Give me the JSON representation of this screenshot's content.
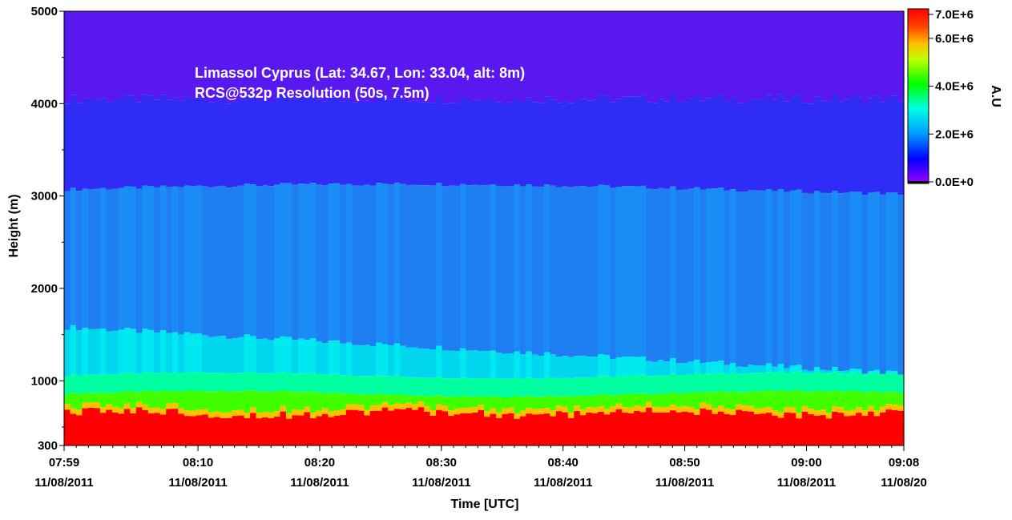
{
  "chart_data": {
    "type": "heatmap",
    "annotations": [
      "Limassol Cyprus (Lat: 34.67, Lon: 33.04, alt: 8m)",
      "RCS@532p Resolution (50s, 7.5m)"
    ],
    "xlabel": "Time [UTC]",
    "ylabel": "Height (m)",
    "x_ticks": [
      {
        "time": "07:59",
        "date": "11/08/2011",
        "minutes": 0
      },
      {
        "time": "08:10",
        "date": "11/08/2011",
        "minutes": 11
      },
      {
        "time": "08:20",
        "date": "11/08/2011",
        "minutes": 21
      },
      {
        "time": "08:30",
        "date": "11/08/2011",
        "minutes": 31
      },
      {
        "time": "08:40",
        "date": "11/08/2011",
        "minutes": 41
      },
      {
        "time": "08:50",
        "date": "11/08/2011",
        "minutes": 51
      },
      {
        "time": "09:00",
        "date": "11/08/2011",
        "minutes": 61
      },
      {
        "time": "09:08",
        "date": "11/08/20",
        "minutes": 69
      }
    ],
    "xlim_minutes": [
      0,
      69
    ],
    "y_ticks": [
      300,
      1000,
      2000,
      3000,
      4000,
      5000
    ],
    "ylim": [
      300,
      5000
    ],
    "colorbar": {
      "label": "A.U",
      "ticks": [
        "7.0E+6",
        "6.0E+6",
        "4.0E+6",
        "2.0E+6",
        "0.0E+0"
      ],
      "tick_values": [
        7000000,
        6000000,
        4000000,
        2000000,
        0
      ],
      "range": [
        0,
        7000000
      ]
    },
    "layers": {
      "red_top_height_m": 650,
      "green_band_top_m": 850,
      "cyan_layer_top_m": 1550,
      "light_blue_top_m": 3050,
      "blue_top_m": 4000
    }
  }
}
